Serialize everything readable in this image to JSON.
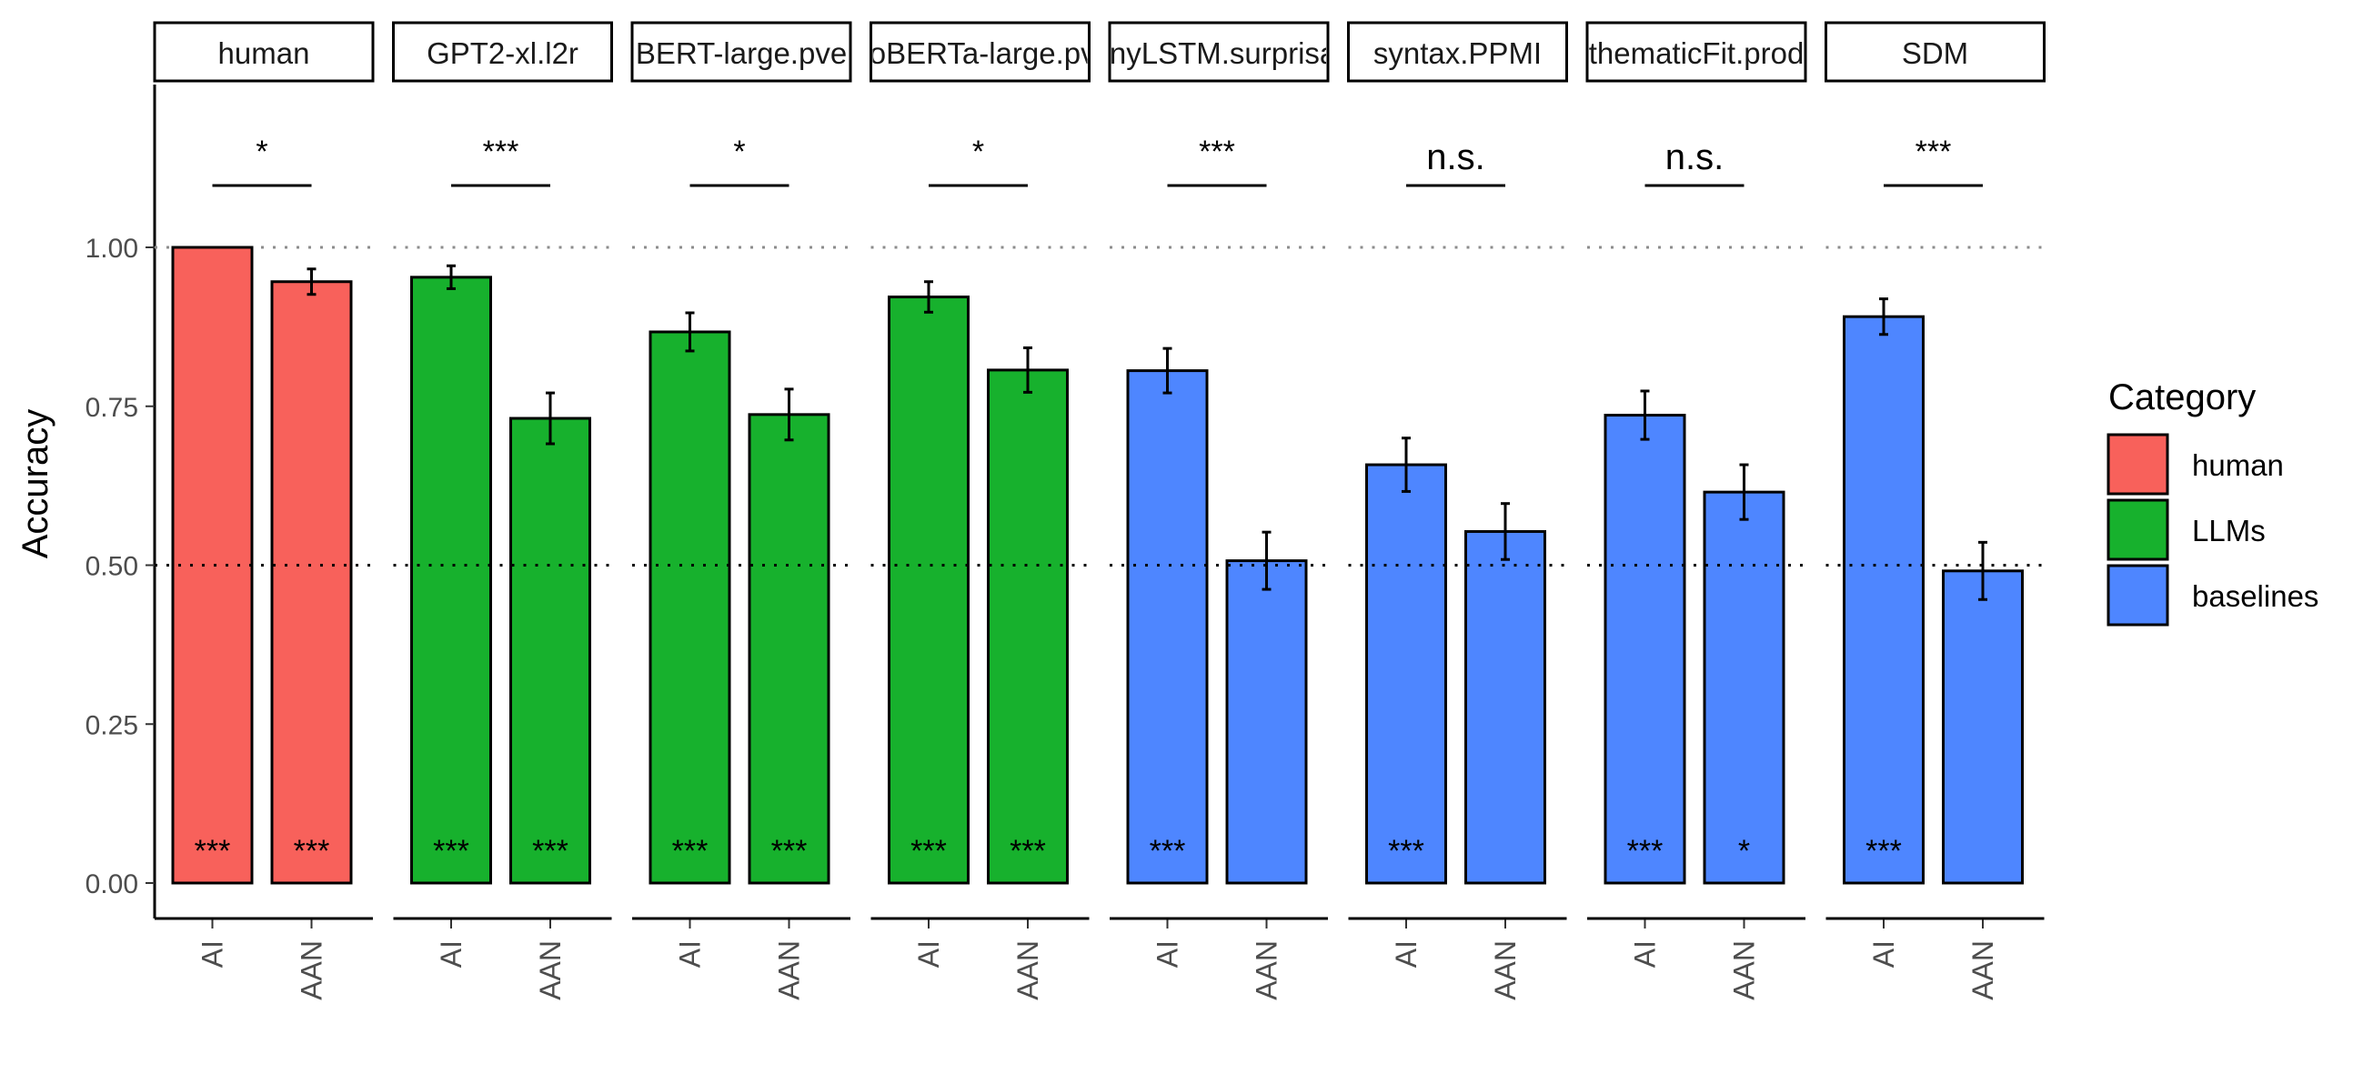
{
  "chart_data": {
    "type": "bar",
    "ylabel": "Accuracy",
    "ylim": [
      0,
      1.25
    ],
    "yticks": [
      0,
      0.25,
      0.5,
      0.75,
      1
    ],
    "ytick_labels": [
      "0.00",
      "0.25",
      "0.50",
      "0.75",
      "1.00"
    ],
    "reference_lines": [
      1.0,
      0.5
    ],
    "categories": [
      "AI",
      "AAN"
    ],
    "colors": {
      "human": "#F8615B",
      "LLMs": "#17B12D",
      "baselines": "#4E86FF"
    },
    "legend": {
      "title": "Category",
      "position": "right",
      "entries": [
        {
          "key": "human",
          "label": "human"
        },
        {
          "key": "LLMs",
          "label": "LLMs"
        },
        {
          "key": "baselines",
          "label": "baselines"
        }
      ]
    },
    "panels": [
      {
        "label": "human",
        "category": "human",
        "values": [
          1.0,
          0.946
        ],
        "errors": [
          0.0,
          0.02
        ],
        "sig": [
          "***",
          "***"
        ],
        "comparison": "*"
      },
      {
        "label": "GPT2-xl.l2r",
        "category": "LLMs",
        "values": [
          0.953,
          0.731
        ],
        "errors": [
          0.018,
          0.04
        ],
        "sig": [
          "***",
          "***"
        ],
        "comparison": "***"
      },
      {
        "label": "BERT-large.pve",
        "category": "LLMs",
        "values": [
          0.867,
          0.737
        ],
        "errors": [
          0.03,
          0.04
        ],
        "sig": [
          "***",
          "***"
        ],
        "comparison": "*"
      },
      {
        "label": "RoBERTa-large.pve",
        "category": "LLMs",
        "values": [
          0.922,
          0.807
        ],
        "errors": [
          0.024,
          0.035
        ],
        "sig": [
          "***",
          "***"
        ],
        "comparison": "*"
      },
      {
        "label": "tinyLSTM.surprisal",
        "category": "baselines",
        "values": [
          0.806,
          0.507
        ],
        "errors": [
          0.035,
          0.045
        ],
        "sig": [
          "***",
          ""
        ],
        "comparison": "***"
      },
      {
        "label": "syntax.PPMI",
        "category": "baselines",
        "values": [
          0.658,
          0.553
        ],
        "errors": [
          0.042,
          0.044
        ],
        "sig": [
          "***",
          ""
        ],
        "comparison": "n.s."
      },
      {
        "label": "thematicFit.prod",
        "category": "baselines",
        "values": [
          0.736,
          0.615
        ],
        "errors": [
          0.038,
          0.043
        ],
        "sig": [
          "***",
          "*"
        ],
        "comparison": "n.s."
      },
      {
        "label": "SDM",
        "category": "baselines",
        "values": [
          0.891,
          0.491
        ],
        "errors": [
          0.028,
          0.045
        ],
        "sig": [
          "***",
          ""
        ],
        "comparison": "***"
      }
    ]
  }
}
